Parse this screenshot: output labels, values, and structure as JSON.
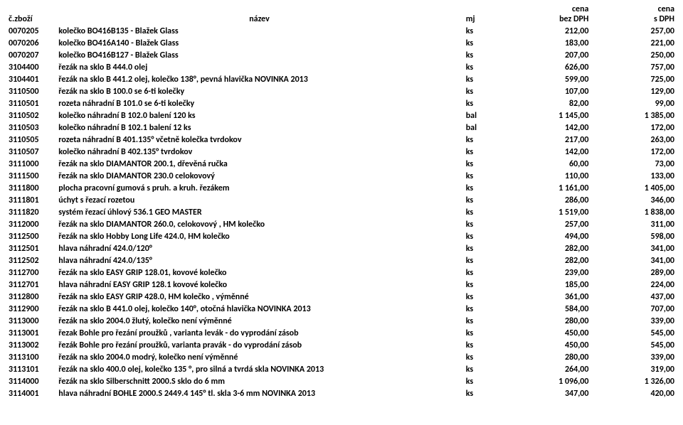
{
  "header": {
    "row1": {
      "code": "",
      "name": "",
      "unit": "",
      "p1": "cena",
      "p2": "cena"
    },
    "row2": {
      "code": "č.zboží",
      "name": "název",
      "unit": "mj",
      "p1": "bez DPH",
      "p2": "s DPH"
    }
  },
  "columns": {
    "code_align": "left",
    "name_align": "left",
    "unit_align": "left",
    "p1_align": "right",
    "p2_align": "right"
  },
  "rows": [
    {
      "code": "0070205",
      "name": "kolečko BO416B135 - Blažek Glass",
      "unit": "ks",
      "p1": "212,00",
      "p2": "257,00"
    },
    {
      "code": "0070206",
      "name": "kolečko BO416A140 - Blažek Glass",
      "unit": "ks",
      "p1": "183,00",
      "p2": "221,00"
    },
    {
      "code": "0070207",
      "name": "kolečko BO416B127 - Blažek Glass",
      "unit": "ks",
      "p1": "207,00",
      "p2": "250,00"
    },
    {
      "code": "3104400",
      "name": "řezák na sklo B 444.0 olej",
      "unit": "ks",
      "p1": "626,00",
      "p2": "757,00"
    },
    {
      "code": "3104401",
      "name": "řezák na sklo B 441.2 olej, kolečko 138°, pevná hlavička  NOVINKA 2013",
      "unit": "ks",
      "p1": "599,00",
      "p2": "725,00"
    },
    {
      "code": "3110500",
      "name": "řezák na sklo B 100.0 se 6-ti kolečky",
      "unit": "ks",
      "p1": "107,00",
      "p2": "129,00"
    },
    {
      "code": "3110501",
      "name": "rozeta náhradní B 101.0 se 6-ti kolečky",
      "unit": "ks",
      "p1": "82,00",
      "p2": "99,00"
    },
    {
      "code": "3110502",
      "name": "kolečko náhradní B 102.0 balení 120 ks",
      "unit": "bal",
      "p1": "1 145,00",
      "p2": "1 385,00"
    },
    {
      "code": "3110503",
      "name": "kolečko náhradní B 102.1 balení 12 ks",
      "unit": "bal",
      "p1": "142,00",
      "p2": "172,00"
    },
    {
      "code": "3110505",
      "name": "rozeta náhradní B 401.135° včetně kolečka tvrdokov",
      "unit": "ks",
      "p1": "217,00",
      "p2": "263,00"
    },
    {
      "code": "3110507",
      "name": "kolečko náhradní B 402.135° tvrdokov",
      "unit": "ks",
      "p1": "142,00",
      "p2": "172,00"
    },
    {
      "code": "3111000",
      "name": "řezák na sklo DIAMANTOR 200.1, dřevěná ručka",
      "unit": "ks",
      "p1": "60,00",
      "p2": "73,00"
    },
    {
      "code": "3111500",
      "name": "řezák na sklo DIAMANTOR 230.0 celokovový",
      "unit": "ks",
      "p1": "110,00",
      "p2": "133,00"
    },
    {
      "code": "3111800",
      "name": "plocha pracovní gumová s pruh. a kruh. řezákem",
      "unit": "ks",
      "p1": "1 161,00",
      "p2": "1 405,00"
    },
    {
      "code": "3111801",
      "name": "úchyt s řezací rozetou",
      "unit": "ks",
      "p1": "286,00",
      "p2": "346,00"
    },
    {
      "code": "3111820",
      "name": "systém řezací úhlový 536.1 GEO MASTER",
      "unit": "ks",
      "p1": "1 519,00",
      "p2": "1 838,00"
    },
    {
      "code": "3112000",
      "name": "řezák na sklo DIAMANTOR 260.0, celokovový , HM kolečko",
      "unit": "ks",
      "p1": "257,00",
      "p2": "311,00"
    },
    {
      "code": "3112500",
      "name": "řezák na sklo Hobby Long Life 424.0, HM kolečko",
      "unit": "ks",
      "p1": "494,00",
      "p2": "598,00"
    },
    {
      "code": "3112501",
      "name": "hlava náhradní 424.0/120°",
      "unit": "ks",
      "p1": "282,00",
      "p2": "341,00"
    },
    {
      "code": "3112502",
      "name": "hlava náhradní 424.0/135°",
      "unit": "ks",
      "p1": "282,00",
      "p2": "341,00"
    },
    {
      "code": "3112700",
      "name": "řezák na sklo EASY GRIP 128.01, kovové kolečko",
      "unit": "ks",
      "p1": "239,00",
      "p2": "289,00"
    },
    {
      "code": "3112701",
      "name": "hlava náhradní EASY GRIP 128.1  kovové kolečko",
      "unit": "ks",
      "p1": "185,00",
      "p2": "224,00"
    },
    {
      "code": "3112800",
      "name": "řezák na sklo EASY GRIP 428.0, HM kolečko , výměnné",
      "unit": "ks",
      "p1": "361,00",
      "p2": "437,00"
    },
    {
      "code": "3112900",
      "name": "řezák na sklo B 441.0 olej, kolečko 140°, otočná hlavička   NOVINKA 2013",
      "unit": "ks",
      "p1": "584,00",
      "p2": "707,00"
    },
    {
      "code": "3113000",
      "name": "řezák na sklo 2004.0 žlutý, kolečko není výměnné",
      "unit": "ks",
      "p1": "280,00",
      "p2": "339,00"
    },
    {
      "code": "3113001",
      "name": "řezak Bohle pro řezání proužků , varianta levák - do vyprodání zásob",
      "unit": "ks",
      "p1": "450,00",
      "p2": "545,00"
    },
    {
      "code": "3113002",
      "name": "řezák Bohle pro řezání proužků, varianta pravák - do vyprodání zásob",
      "unit": "ks",
      "p1": "450,00",
      "p2": "545,00"
    },
    {
      "code": "3113100",
      "name": "řezák na sklo 2004.0 modrý, kolečko není výměnné",
      "unit": "ks",
      "p1": "280,00",
      "p2": "339,00"
    },
    {
      "code": "3113101",
      "name": "řezák na sklo 400.0 olej, kolečko 135 °, pro silná a tvrdá skla NOVINKA 2013",
      "unit": "ks",
      "p1": "264,00",
      "p2": "319,00"
    },
    {
      "code": "3114000",
      "name": "řezák na sklo Silberschnitt 2000.S sklo do 6 mm",
      "unit": "ks",
      "p1": "1 096,00",
      "p2": "1 326,00"
    },
    {
      "code": "3114001",
      "name": "hlava náhradní BOHLE 2000.S 2449.4 145° tl. skla 3-6 mm  NOVINKA 2013",
      "unit": "ks",
      "p1": "347,00",
      "p2": "420,00"
    }
  ]
}
